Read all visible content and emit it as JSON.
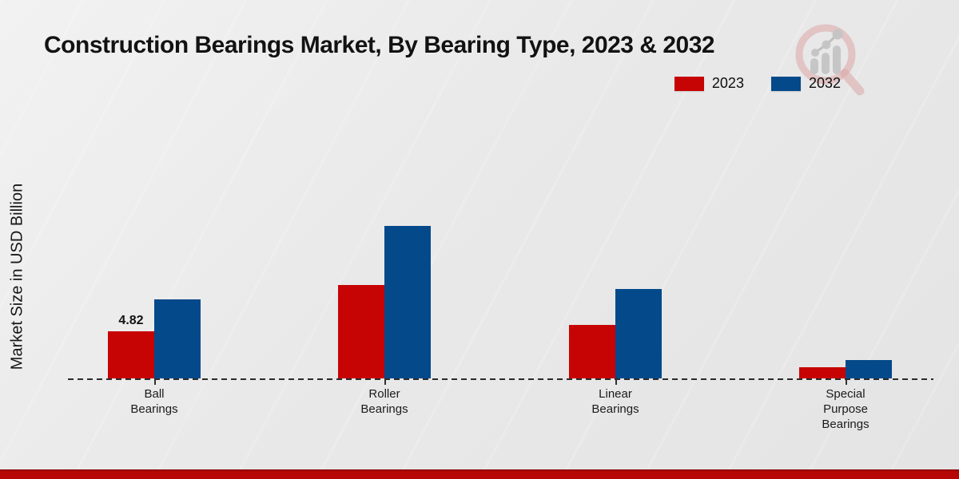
{
  "title": "Construction Bearings Market, By Bearing Type, 2023 & 2032",
  "ylabel": "Market Size in USD Billion",
  "colors": {
    "series_2023": "#c70404",
    "series_2032": "#04498a",
    "footer_strip": "#b60606",
    "background": "#e9e9e9"
  },
  "legend": {
    "position": "top-right",
    "items": [
      {
        "label": "2023",
        "color": "#c70404"
      },
      {
        "label": "2032",
        "color": "#04498a"
      }
    ]
  },
  "chart_data": {
    "type": "bar",
    "title": "Construction Bearings Market, By Bearing Type, 2023 & 2032",
    "xlabel": "",
    "ylabel": "Market Size in USD Billion",
    "ylim": [
      0,
      16.5
    ],
    "grid": false,
    "axis_style": "dashed-baseline-only",
    "categories": [
      "Ball\nBearings",
      "Roller\nBearings",
      "Linear\nBearings",
      "Special\nPurpose\nBearings"
    ],
    "series": [
      {
        "name": "2023",
        "color": "#c70404",
        "values": [
          4.82,
          9.56,
          5.47,
          1.14
        ]
      },
      {
        "name": "2032",
        "color": "#04498a",
        "values": [
          8.09,
          15.6,
          9.15,
          1.88
        ]
      }
    ],
    "annotations": [
      {
        "series_index": 0,
        "category_index": 0,
        "text": "4.82"
      }
    ]
  },
  "watermark": "magnifier-chart-logo"
}
